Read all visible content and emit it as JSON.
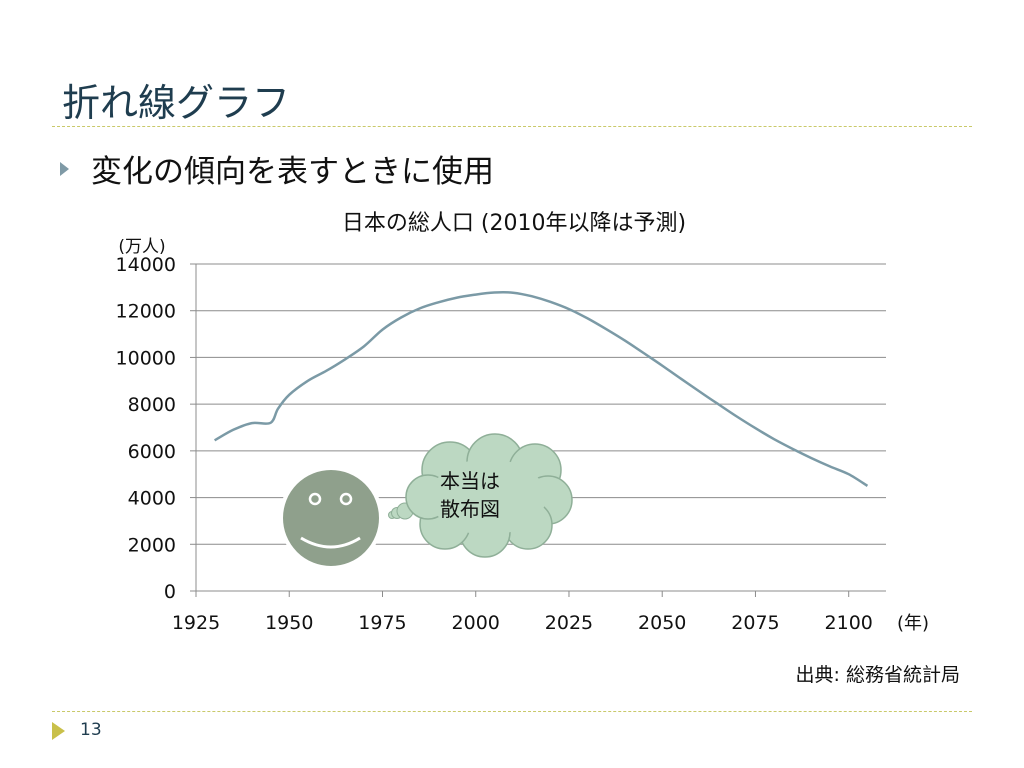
{
  "slide": {
    "title": "折れ線グラフ",
    "bullet": "変化の傾向を表すときに使用",
    "source": "出典: 総務省統計局",
    "page_number": "13"
  },
  "callout": {
    "line1": "本当は",
    "line2": "散布図"
  },
  "colors": {
    "title": "#1f3d4f",
    "line": "#7b9aa6",
    "grid": "#8c8c8c",
    "rule": "#c9c96a",
    "smiley": "#8fa08c",
    "cloud": "#bcd8c2"
  },
  "chart_data": {
    "type": "line",
    "title": "日本の総人口 (2010年以降は予測)",
    "ylabel": "(万人)",
    "xlabel": "(年)",
    "xlim": [
      1925,
      2110
    ],
    "ylim": [
      0,
      14000
    ],
    "xticks": [
      1925,
      1950,
      1975,
      2000,
      2025,
      2050,
      2075,
      2100
    ],
    "yticks": [
      0,
      2000,
      4000,
      6000,
      8000,
      10000,
      12000,
      14000
    ],
    "grid": true,
    "series": [
      {
        "x": [
          1930,
          1935,
          1940,
          1945,
          1947,
          1950,
          1955,
          1960,
          1965,
          1970,
          1975,
          1980,
          1985,
          1990,
          1995,
          2000,
          2005,
          2010,
          2015,
          2020,
          2025,
          2030,
          2035,
          2040,
          2045,
          2050,
          2055,
          2060,
          2065,
          2070,
          2075,
          2080,
          2085,
          2090,
          2095,
          2100,
          2105
        ],
        "y": [
          6450,
          6900,
          7190,
          7200,
          7810,
          8400,
          9000,
          9430,
          9920,
          10470,
          11190,
          11710,
          12100,
          12360,
          12560,
          12690,
          12780,
          12770,
          12620,
          12380,
          12070,
          11670,
          11210,
          10720,
          10190,
          9650,
          9090,
          8540,
          8000,
          7470,
          6970,
          6500,
          6080,
          5690,
          5330,
          5000,
          4500
        ]
      }
    ]
  }
}
